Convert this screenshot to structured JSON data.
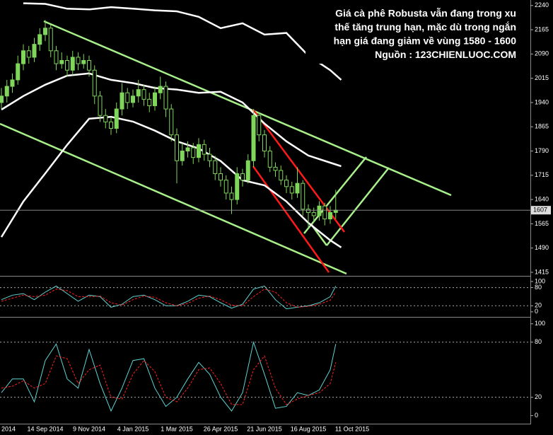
{
  "chart_data": [
    {
      "type": "candlestick",
      "annotation": [
        "Giá cà phê Robusta vẫn đang trong xu",
        "thế tăng trung hạn, mặc dù trong ngắn",
        "hạn giá đang giảm về vùng 1580 - 1600",
        "Nguồn : 123CHIENLUOC.COM"
      ],
      "categories": [
        "2014",
        null,
        null,
        null,
        null,
        null,
        null,
        null,
        "14 Sep 2014",
        null,
        null,
        null,
        null,
        null,
        null,
        null,
        "9 Nov 2014",
        null,
        null,
        null,
        null,
        null,
        null,
        null,
        "4 Jan 2015",
        null,
        null,
        null,
        null,
        null,
        null,
        null,
        "1 Mar 2015",
        null,
        null,
        null,
        null,
        null,
        null,
        null,
        "26 Apr 2015",
        null,
        null,
        null,
        null,
        null,
        null,
        null,
        "21 Jun 2015",
        null,
        null,
        null,
        null,
        null,
        null,
        null,
        "16 Aug 2015",
        null,
        null,
        null,
        null,
        null,
        null,
        null,
        "11 Oct 2015"
      ],
      "open": [
        1940,
        1960,
        1990,
        2010,
        2060,
        2100,
        2080,
        2120,
        2150,
        2170,
        2100,
        2060,
        2070,
        2040,
        2080,
        2060,
        2070,
        2040,
        1960,
        1900,
        1880,
        1860,
        1920,
        1970,
        1940,
        1960,
        1980,
        1950,
        1930,
        1970,
        1990,
        1920,
        1840,
        1760,
        1790,
        1800,
        1770,
        1810,
        1780,
        1760,
        1720,
        1700,
        1660,
        1640,
        1720,
        1700,
        1760,
        1900,
        1840,
        1790,
        1740,
        1730,
        1700,
        1680,
        1660,
        1690,
        1610,
        1600,
        1590,
        1620,
        1580,
        1600,
        null,
        null,
        null
      ],
      "high": [
        1985,
        2010,
        2030,
        2085,
        2120,
        2115,
        2140,
        2170,
        2195,
        2180,
        2115,
        2095,
        2085,
        2100,
        2095,
        2090,
        2085,
        2055,
        1975,
        1920,
        1895,
        1940,
        2000,
        1985,
        1980,
        2010,
        1995,
        1970,
        1990,
        2020,
        2005,
        1935,
        1860,
        1815,
        1820,
        1815,
        1830,
        1825,
        1800,
        1775,
        1740,
        1715,
        1680,
        1740,
        1735,
        1780,
        1920,
        1910,
        1855,
        1805,
        1755,
        1745,
        1715,
        1695,
        1740,
        1700,
        1625,
        1615,
        1635,
        1630,
        1620,
        1670,
        null,
        null,
        null
      ],
      "low": [
        1920,
        1940,
        1970,
        1995,
        2040,
        2060,
        2065,
        2100,
        2130,
        2080,
        2040,
        2045,
        2020,
        2025,
        2040,
        2045,
        2020,
        1935,
        1880,
        1860,
        1840,
        1845,
        1900,
        1920,
        1925,
        1940,
        1930,
        1910,
        1915,
        1950,
        1895,
        1820,
        1690,
        1745,
        1770,
        1750,
        1755,
        1760,
        1740,
        1700,
        1680,
        1640,
        1595,
        1625,
        1680,
        1690,
        1740,
        1820,
        1770,
        1725,
        1710,
        1685,
        1660,
        1640,
        1645,
        1590,
        1550,
        1570,
        1575,
        1560,
        1565,
        1580,
        null,
        null,
        null
      ],
      "close": [
        1960,
        1990,
        2010,
        2060,
        2100,
        2080,
        2120,
        2150,
        2170,
        2100,
        2060,
        2070,
        2040,
        2080,
        2060,
        2070,
        2040,
        1960,
        1900,
        1880,
        1860,
        1920,
        1970,
        1940,
        1960,
        1980,
        1950,
        1930,
        1970,
        1990,
        1920,
        1840,
        1760,
        1790,
        1800,
        1770,
        1810,
        1780,
        1760,
        1720,
        1700,
        1660,
        1640,
        1720,
        1700,
        1760,
        1900,
        1840,
        1790,
        1740,
        1730,
        1700,
        1680,
        1660,
        1690,
        1610,
        1600,
        1590,
        1620,
        1580,
        1600,
        1607,
        null,
        null,
        null
      ],
      "up_color": "#7fd65a",
      "down_color": "#000000",
      "series": [
        {
          "color": "#ffffff",
          "x": [
            4,
            8,
            12,
            16,
            20,
            24,
            28,
            32,
            36,
            40,
            44,
            48,
            52,
            56,
            60,
            62
          ],
          "values": [
            2247,
            2245,
            2230,
            2228,
            2235,
            2230,
            2225,
            2222,
            2205,
            2170,
            2185,
            2150,
            2155,
            2085,
            2040,
            2010
          ]
        },
        {
          "color": "#ffffff",
          "x": [
            0,
            4,
            8,
            12,
            16,
            20,
            24,
            28,
            32,
            36,
            40,
            44,
            48,
            52,
            56,
            60,
            62
          ],
          "values": [
            1918,
            1960,
            1995,
            2023,
            2030,
            2010,
            2000,
            1985,
            1980,
            1970,
            1973,
            1940,
            1875,
            1820,
            1776,
            1754,
            1743
          ]
        },
        {
          "color": "#ffffff",
          "x": [
            0,
            4,
            8,
            12,
            16,
            20,
            24,
            28,
            32,
            36,
            40,
            44,
            48,
            52,
            56,
            60,
            62
          ],
          "values": [
            1524,
            1634,
            1721,
            1809,
            1890,
            1896,
            1881,
            1853,
            1820,
            1798,
            1759,
            1700,
            1684,
            1634,
            1568,
            1514,
            1492
          ]
        }
      ],
      "ylim": [
        1404,
        2257
      ],
      "yticks": [
        2240,
        2165,
        2090,
        2015,
        1940,
        1865,
        1790,
        1715,
        1640,
        1565,
        1490,
        1415
      ]
    },
    {
      "type": "line",
      "x": [
        0,
        2,
        4,
        6,
        8,
        10,
        12,
        14,
        16,
        18,
        20,
        22,
        24,
        26,
        28,
        30,
        32,
        34,
        36,
        38,
        40,
        42,
        44,
        46,
        48,
        50,
        52,
        54,
        56,
        58,
        60,
        61
      ],
      "series": [
        {
          "color": "#5fd3d3",
          "values": [
            40,
            55,
            60,
            40,
            65,
            85,
            60,
            35,
            55,
            50,
            15,
            25,
            50,
            55,
            40,
            20,
            20,
            35,
            55,
            50,
            30,
            12,
            25,
            75,
            85,
            40,
            10,
            15,
            20,
            30,
            50,
            85
          ]
        },
        {
          "color": "#ff2020",
          "dash": true,
          "values": [
            35,
            45,
            55,
            50,
            55,
            75,
            70,
            50,
            50,
            52,
            30,
            22,
            40,
            52,
            48,
            30,
            20,
            28,
            45,
            52,
            40,
            22,
            20,
            50,
            75,
            65,
            30,
            15,
            18,
            25,
            38,
            65
          ]
        }
      ],
      "reference_lines": [
        20,
        80
      ],
      "ylim": [
        -12,
        114
      ],
      "yticks": [
        100,
        80,
        20,
        0
      ]
    },
    {
      "type": "line",
      "x": [
        0,
        2,
        4,
        6,
        8,
        10,
        12,
        14,
        16,
        18,
        20,
        22,
        24,
        26,
        28,
        30,
        32,
        34,
        36,
        38,
        40,
        42,
        44,
        46,
        48,
        50,
        52,
        54,
        56,
        58,
        60,
        61
      ],
      "series": [
        {
          "color": "#5fd3d3",
          "values": [
            25,
            40,
            40,
            15,
            60,
            78,
            40,
            30,
            72,
            35,
            5,
            30,
            60,
            62,
            30,
            10,
            20,
            40,
            58,
            45,
            20,
            5,
            25,
            80,
            45,
            8,
            10,
            25,
            22,
            28,
            50,
            78
          ]
        },
        {
          "color": "#ff2020",
          "dash": true,
          "values": [
            30,
            32,
            38,
            30,
            35,
            65,
            62,
            35,
            50,
            55,
            20,
            18,
            45,
            60,
            48,
            20,
            15,
            30,
            50,
            52,
            35,
            12,
            12,
            50,
            65,
            30,
            12,
            18,
            22,
            25,
            35,
            58
          ]
        }
      ],
      "reference_lines": [
        20,
        80
      ],
      "ylim": [
        -8,
        106
      ],
      "yticks": [
        100,
        80,
        20,
        0
      ]
    }
  ]
}
